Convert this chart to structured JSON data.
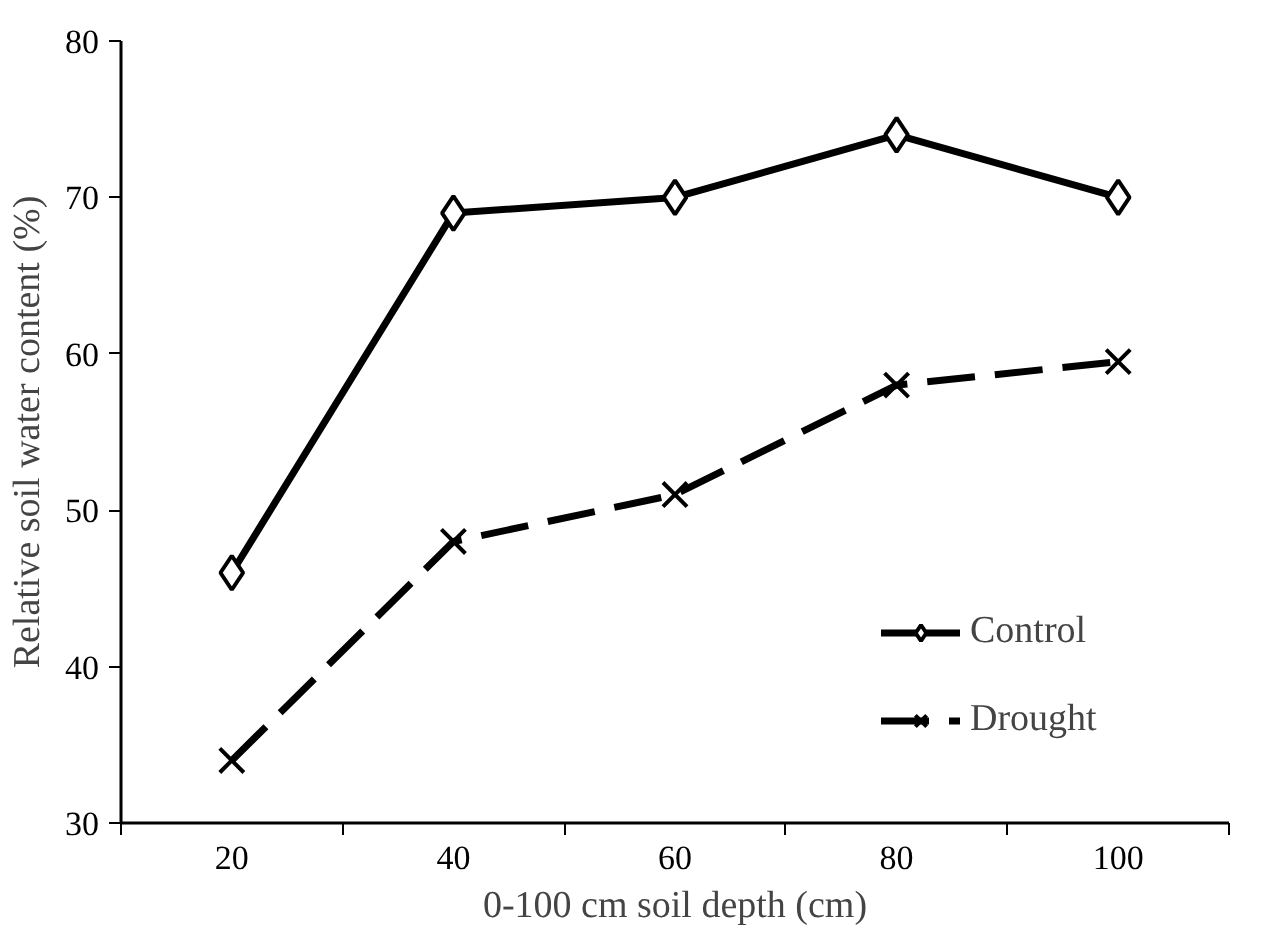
{
  "chart_data": {
    "type": "line",
    "xlabel": "0-100 cm soil depth (cm)",
    "ylabel": "Relative soil water content (%)",
    "categories": [
      "20",
      "40",
      "60",
      "80",
      "100"
    ],
    "ylim": [
      30,
      80
    ],
    "yticks": [
      30,
      40,
      50,
      60,
      70,
      80
    ],
    "grid": false,
    "legend": "right",
    "series": [
      {
        "name": "Control",
        "color": "#000000",
        "values": [
          46,
          69,
          70,
          74,
          70
        ],
        "marker": "diamond",
        "line_style": "solid"
      },
      {
        "name": "Drought",
        "color": "#000000",
        "values": [
          34,
          48,
          51,
          58,
          59.5
        ],
        "marker": "cross",
        "line_style": "dashed"
      }
    ]
  }
}
